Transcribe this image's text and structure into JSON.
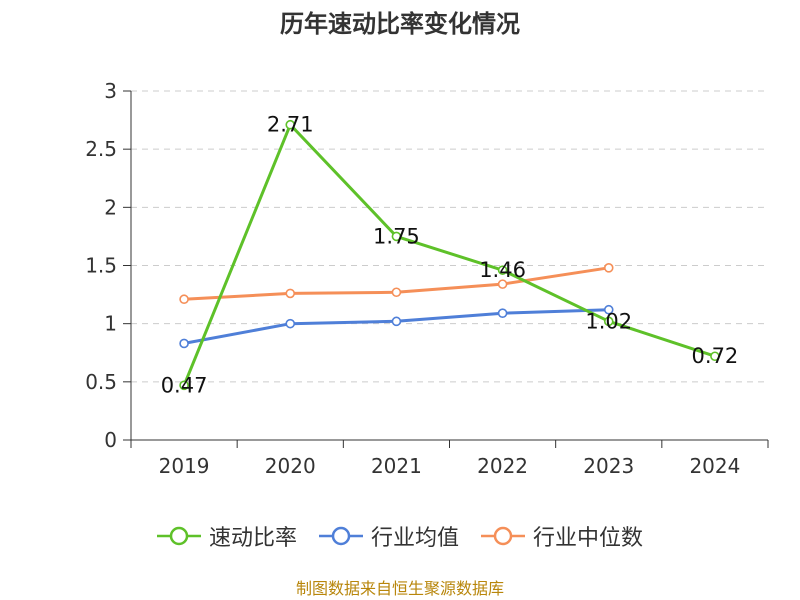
{
  "chart_data": {
    "type": "line",
    "title": "历年速动比率变化情况",
    "categories": [
      "2019",
      "2020",
      "2021",
      "2022",
      "2023",
      "2024"
    ],
    "ylim": [
      0,
      3
    ],
    "yticks": [
      "0",
      "0.5",
      "1",
      "1.5",
      "2",
      "2.5",
      "3"
    ],
    "ytick_values": [
      0,
      0.5,
      1,
      1.5,
      2,
      2.5,
      3
    ],
    "grid": true,
    "legend_position": "bottom",
    "series": [
      {
        "name": "速动比率",
        "color": "#5ec129",
        "values": [
          0.47,
          2.71,
          1.75,
          1.46,
          1.02,
          0.72
        ],
        "labels": [
          "0.47",
          "2.71",
          "1.75",
          "1.46",
          "1.02",
          "0.72"
        ]
      },
      {
        "name": "行业均值",
        "color": "#4f7fd8",
        "values": [
          0.83,
          1.0,
          1.02,
          1.09,
          1.12,
          null
        ]
      },
      {
        "name": "行业中位数",
        "color": "#f58f58",
        "values": [
          1.21,
          1.26,
          1.27,
          1.34,
          1.48,
          null
        ]
      }
    ]
  },
  "source_text": "制图数据来自恒生聚源数据库"
}
